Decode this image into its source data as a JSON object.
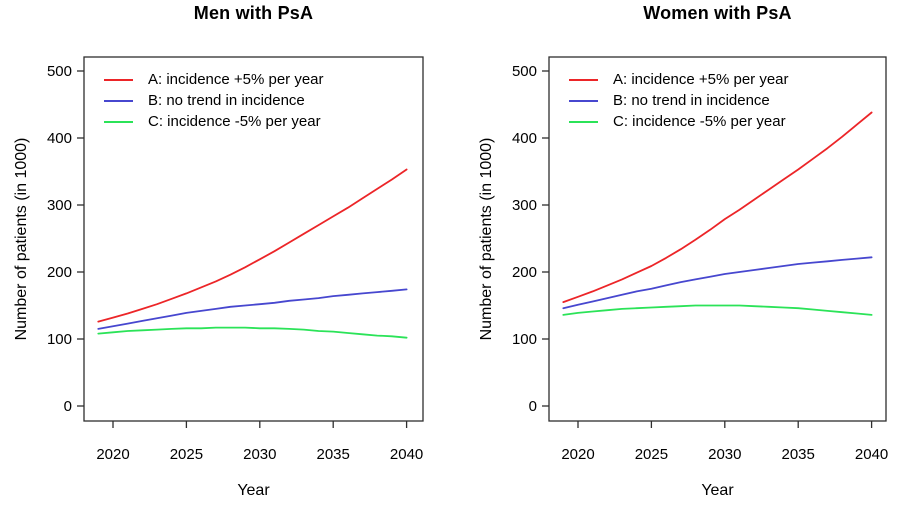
{
  "figure": {
    "background": "#ffffff",
    "text_color": "#000000",
    "axis_color": "#2e2e2e"
  },
  "chart_data": [
    {
      "type": "line",
      "title": "Men with PsA",
      "xlabel": "Year",
      "ylabel": "Number of patients (in 1000)",
      "xlim": [
        2019,
        2040
      ],
      "ylim": [
        0,
        500
      ],
      "xticks": [
        2020,
        2025,
        2030,
        2035,
        2040
      ],
      "yticks": [
        0,
        100,
        200,
        300,
        400,
        500
      ],
      "grid": false,
      "legend_position": "top-left",
      "years": [
        2019,
        2020,
        2021,
        2022,
        2023,
        2024,
        2025,
        2026,
        2027,
        2028,
        2029,
        2030,
        2031,
        2032,
        2033,
        2034,
        2035,
        2036,
        2037,
        2038,
        2039,
        2040
      ],
      "series": [
        {
          "id": "A",
          "name": "A: incidence +5% per year",
          "color": "#ec2528",
          "values": [
            126,
            132,
            138,
            145,
            152,
            160,
            168,
            177,
            186,
            196,
            207,
            219,
            231,
            244,
            257,
            270,
            283,
            296,
            310,
            324,
            338,
            353
          ]
        },
        {
          "id": "B",
          "name": "B: no trend in incidence",
          "color": "#4747cf",
          "values": [
            115,
            119,
            123,
            127,
            131,
            135,
            139,
            142,
            145,
            148,
            150,
            152,
            154,
            157,
            159,
            161,
            164,
            166,
            168,
            170,
            172,
            174
          ]
        },
        {
          "id": "C",
          "name": "C: incidence -5% per year",
          "color": "#2be358",
          "values": [
            108,
            110,
            112,
            113,
            114,
            115,
            116,
            116,
            117,
            117,
            117,
            116,
            116,
            115,
            114,
            112,
            111,
            109,
            107,
            105,
            104,
            102
          ]
        }
      ]
    },
    {
      "type": "line",
      "title": "Women with PsA",
      "xlabel": "Year",
      "ylabel": "Number of patients (in 1000)",
      "xlim": [
        2019,
        2040
      ],
      "ylim": [
        0,
        500
      ],
      "xticks": [
        2020,
        2025,
        2030,
        2035,
        2040
      ],
      "yticks": [
        0,
        100,
        200,
        300,
        400,
        500
      ],
      "grid": false,
      "legend_position": "top-left",
      "years": [
        2019,
        2020,
        2021,
        2022,
        2023,
        2024,
        2025,
        2026,
        2027,
        2028,
        2029,
        2030,
        2031,
        2032,
        2033,
        2034,
        2035,
        2036,
        2037,
        2038,
        2039,
        2040
      ],
      "series": [
        {
          "id": "A",
          "name": "A: incidence +5% per year",
          "color": "#ec2528",
          "values": [
            155,
            163,
            171,
            180,
            189,
            199,
            209,
            221,
            234,
            248,
            263,
            279,
            293,
            308,
            323,
            338,
            353,
            369,
            385,
            402,
            420,
            438
          ]
        },
        {
          "id": "B",
          "name": "B: no trend in incidence",
          "color": "#4747cf",
          "values": [
            146,
            151,
            156,
            161,
            166,
            171,
            175,
            180,
            185,
            189,
            193,
            197,
            200,
            203,
            206,
            209,
            212,
            214,
            216,
            218,
            220,
            222
          ]
        },
        {
          "id": "C",
          "name": "C: incidence -5% per year",
          "color": "#2be358",
          "values": [
            136,
            139,
            141,
            143,
            145,
            146,
            147,
            148,
            149,
            150,
            150,
            150,
            150,
            149,
            148,
            147,
            146,
            144,
            142,
            140,
            138,
            136
          ]
        }
      ]
    }
  ]
}
